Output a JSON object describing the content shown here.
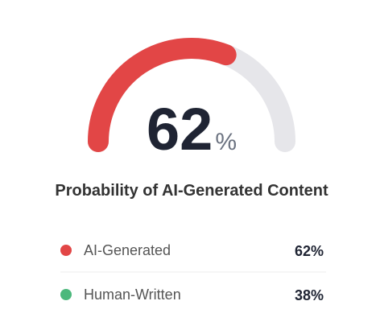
{
  "chart_data": {
    "type": "gauge",
    "title": "Probability of AI-Generated Content",
    "categories": [
      "AI-Generated",
      "Human-Written"
    ],
    "values": [
      62,
      38
    ],
    "value_labels": [
      "62%",
      "38%"
    ],
    "colors": [
      "#e24646",
      "#4cb87c"
    ],
    "track_color": "#e6e6ea",
    "unit": "%",
    "ylim": [
      0,
      100
    ]
  }
}
